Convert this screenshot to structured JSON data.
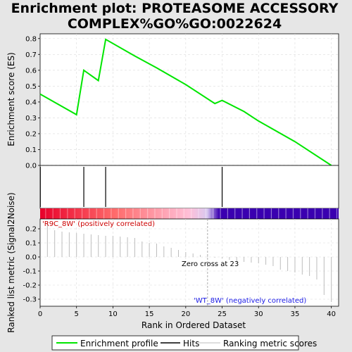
{
  "chart_data": {
    "type": "line",
    "title": "Enrichment plot: PROTEASOME ACCESSORY COMPLEX%GO%GO:0022624",
    "es_panel": {
      "ylabel": "Enrichment score (ES)",
      "ylim": [
        0,
        0.83
      ],
      "yticks": [
        "0.0",
        "0.1",
        "0.2",
        "0.3",
        "0.4",
        "0.5",
        "0.6",
        "0.7",
        "0.8"
      ],
      "ytick_values": [
        0,
        0.1,
        0.2,
        0.3,
        0.4,
        0.5,
        0.6,
        0.7,
        0.8
      ],
      "series": [
        {
          "name": "Enrichment profile",
          "color": "#00e600",
          "x": [
            0,
            5,
            6,
            8,
            9,
            13,
            16,
            20,
            24,
            25,
            28,
            30,
            35,
            40
          ],
          "y": [
            0.45,
            0.32,
            0.6,
            0.535,
            0.795,
            0.69,
            0.615,
            0.51,
            0.39,
            0.41,
            0.34,
            0.28,
            0.15,
            0.0
          ]
        }
      ],
      "grid": true
    },
    "hits": {
      "name": "Hits",
      "positions": [
        6,
        9,
        25
      ]
    },
    "rank_bar": {
      "xlim": [
        0,
        41
      ],
      "zero_cross": 23
    },
    "metric_panel": {
      "ylabel": "Ranked list metric (Signal2Noise)",
      "xlabel": "Rank in Ordered Dataset",
      "ylim": [
        -0.35,
        0.27
      ],
      "yticks": [
        "-0.3",
        "-0.2",
        "-0.1",
        "0.0",
        "0.1",
        "0.2"
      ],
      "ytick_values": [
        -0.3,
        -0.2,
        -0.1,
        0,
        0.1,
        0.2
      ],
      "xticks": [
        "0",
        "5",
        "10",
        "15",
        "20",
        "25",
        "30",
        "35",
        "40"
      ],
      "xtick_values": [
        0,
        5,
        10,
        15,
        20,
        25,
        30,
        35,
        40
      ],
      "series": [
        {
          "name": "Ranking metric scores",
          "color": "#bdbdbd",
          "x": [
            1,
            2,
            3,
            4,
            5,
            6,
            7,
            8,
            9,
            10,
            11,
            12,
            13,
            14,
            15,
            16,
            17,
            18,
            19,
            20,
            21,
            22,
            23,
            24,
            25,
            26,
            27,
            28,
            29,
            30,
            31,
            32,
            33,
            34,
            35,
            36,
            37,
            38,
            39,
            40
          ],
          "values": [
            0.25,
            0.19,
            0.18,
            0.175,
            0.17,
            0.165,
            0.16,
            0.155,
            0.15,
            0.15,
            0.145,
            0.14,
            0.135,
            0.11,
            0.1,
            0.095,
            0.075,
            0.065,
            0.05,
            0.035,
            0.025,
            0.015,
            0.005,
            -0.005,
            -0.01,
            -0.02,
            -0.03,
            -0.035,
            -0.04,
            -0.045,
            -0.055,
            -0.065,
            -0.09,
            -0.1,
            -0.11,
            -0.125,
            -0.135,
            -0.16,
            -0.27,
            -0.32
          ]
        }
      ],
      "annotations": {
        "positive": "'R9C_8W' (positively correlated)",
        "negative": "'WT_8W' (negatively correlated)",
        "zero_cross": "Zero cross at 23"
      },
      "grid": true
    },
    "legend": {
      "placement": "bottom",
      "items": [
        {
          "label": "Enrichment profile",
          "color": "#00e600"
        },
        {
          "label": "Hits",
          "color": "#000000"
        },
        {
          "label": "Ranking metric scores",
          "color": "#bdbdbd"
        }
      ]
    },
    "colors": {
      "positive": "#e8002a",
      "negative": "#3a00b0",
      "background": "#e6e6e6",
      "plot_bg": "#ffffff"
    }
  }
}
